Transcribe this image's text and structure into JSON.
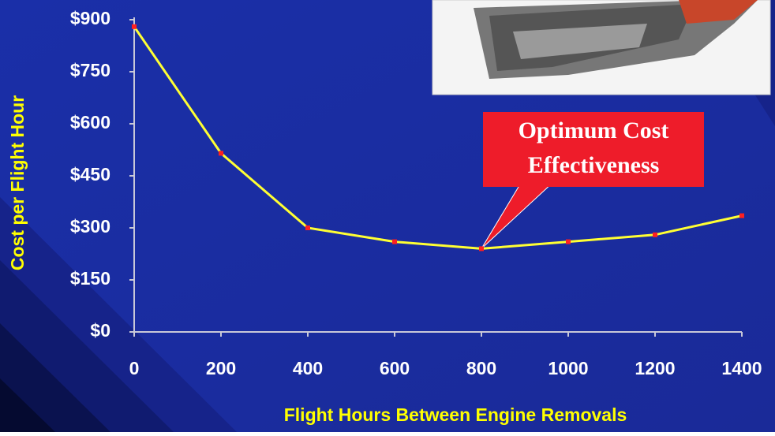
{
  "chart_data": {
    "type": "line",
    "x_label": "Flight Hours Between Engine Removals",
    "y_label": "Cost per Flight Hour",
    "x": [
      0,
      200,
      400,
      600,
      800,
      1000,
      1200,
      1400
    ],
    "series": [
      {
        "name": "Cost per Flight Hour",
        "color": "#ffff33",
        "marker_color": "#ff2020",
        "values": [
          880,
          515,
          300,
          260,
          240,
          260,
          280,
          335
        ]
      }
    ],
    "xlim": [
      0,
      1400
    ],
    "xticks": [
      0,
      200,
      400,
      600,
      800,
      1000,
      1200,
      1400
    ],
    "ylim": [
      0,
      900
    ],
    "yticks": [
      {
        "value": 0,
        "label": "$0"
      },
      {
        "value": 150,
        "label": "$150"
      },
      {
        "value": 300,
        "label": "$300"
      },
      {
        "value": 450,
        "label": "$450"
      },
      {
        "value": 600,
        "label": "$600"
      },
      {
        "value": 750,
        "label": "$750"
      },
      {
        "value": 900,
        "label": "$900"
      }
    ],
    "annotation": {
      "lines": [
        "Optimum Cost",
        "Effectiveness"
      ],
      "x": 800,
      "y": 240
    }
  }
}
